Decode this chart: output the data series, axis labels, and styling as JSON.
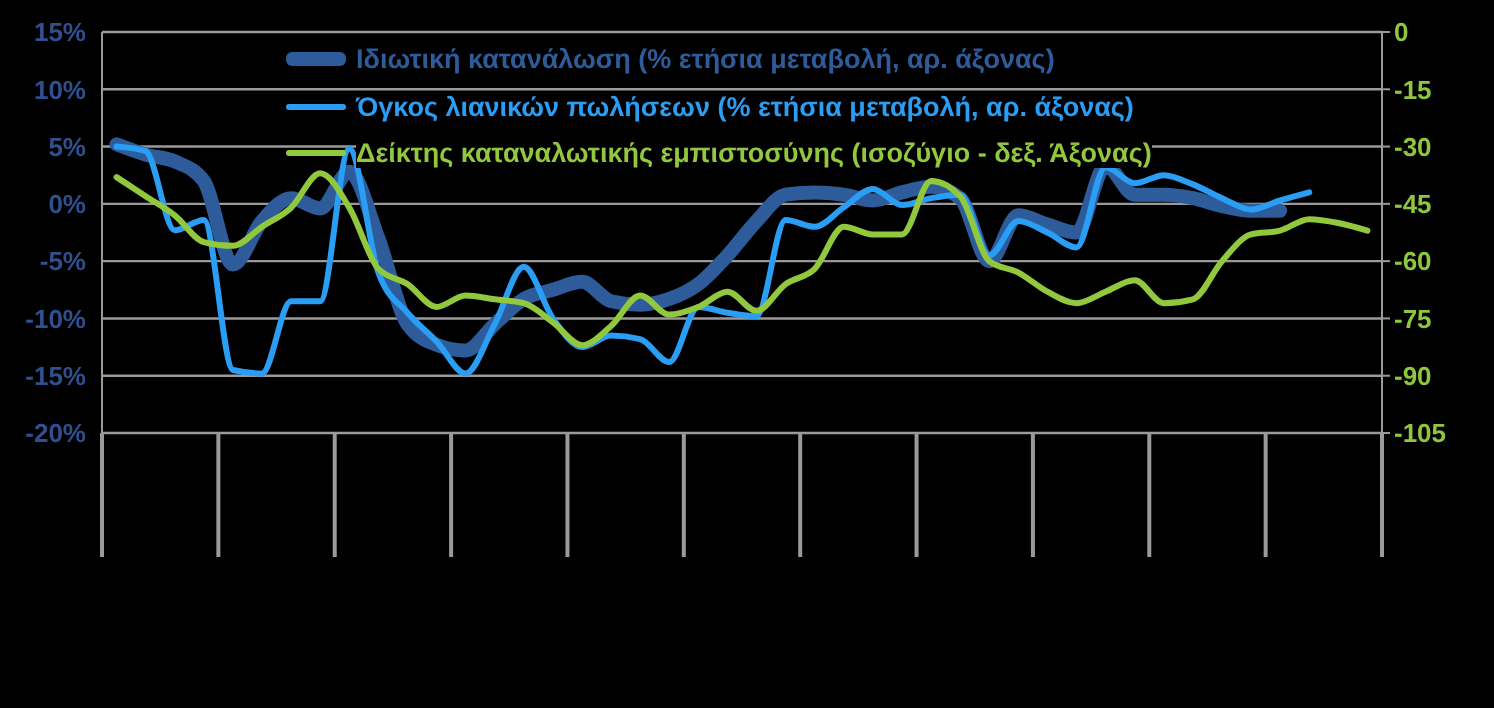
{
  "chart_data": {
    "type": "line",
    "categories": [
      null,
      null,
      null,
      null,
      null,
      null,
      null,
      null,
      null,
      null,
      null,
      null,
      null,
      null,
      null,
      null,
      null,
      null,
      null,
      null,
      null,
      null,
      null,
      null,
      null,
      null,
      null,
      null,
      null,
      null,
      null,
      null,
      null,
      null,
      null,
      null,
      null,
      null,
      null,
      null,
      null,
      null,
      null,
      null
    ],
    "series": [
      {
        "name": "Ιδιωτική κατανάλωση (% ετήσια μεταβολή, αρ. άξονας)",
        "color": "#2e5c9a",
        "values": [
          5.2,
          4.3,
          3.7,
          2.0,
          -5.3,
          -1.5,
          0.5,
          -0.4,
          2.8,
          -3,
          -10.5,
          -12.3,
          -12.8,
          -10.5,
          -8.3,
          -7.5,
          -6.8,
          -8.5,
          -8.8,
          -8.3,
          -7,
          -4.5,
          -1.5,
          0.8,
          1.0,
          0.8,
          0.3,
          1.0,
          1.5,
          0.5,
          -5,
          -1,
          -1.8,
          -2.5,
          3.3,
          0.8,
          0.8,
          0.5,
          -0.2,
          -0.6,
          -0.6,
          null,
          null,
          null
        ]
      },
      {
        "name": "Όγκος λιανικών πωλήσεων (% ετήσια μεταβολή, αρ. άξονας)",
        "color": "#2a9df4",
        "values": [
          5.0,
          4.6,
          -2.3,
          -1.4,
          -14.5,
          -14.8,
          -8.5,
          -8.5,
          4.8,
          -6,
          -9.5,
          -12,
          -14.8,
          -10.5,
          -5.5,
          -10,
          -12.5,
          -11.5,
          -11.8,
          -13.8,
          -9,
          -9.5,
          -9.8,
          -1.4,
          -2,
          -0.3,
          1.3,
          -0.1,
          0.5,
          0.8,
          -4.5,
          -1.5,
          -2.5,
          -3.8,
          3.2,
          1.8,
          2.5,
          1.7,
          0.5,
          -0.5,
          0.3,
          1.0,
          null,
          null
        ]
      },
      {
        "name": "Δείκτης καταναλωτικής εμπιστοσύνης (ισοζύγιο - δεξ. Άξονας)",
        "color": "#92c83e",
        "axis": "y2",
        "values": [
          -38,
          -43,
          -48,
          -55,
          -56,
          -51,
          -46,
          -37,
          -46,
          -62,
          -66,
          -72,
          -69,
          -70,
          -71,
          -76,
          -82,
          -77,
          -69,
          -74,
          -72,
          -68,
          -73,
          -66,
          -62,
          -51,
          -53,
          -53,
          -39,
          -43,
          -60,
          -63,
          -68,
          -71,
          -68,
          -65,
          -71,
          -70,
          -60,
          -53,
          -52,
          -49,
          -50,
          -52
        ]
      }
    ],
    "ylim": [
      -20,
      15
    ],
    "yticks": [
      {
        "value": -20,
        "label": "-20%"
      },
      {
        "value": -15,
        "label": "-15%"
      },
      {
        "value": -10,
        "label": "-10%"
      },
      {
        "value": -5,
        "label": "-5%"
      },
      {
        "value": 0,
        "label": "0%"
      },
      {
        "value": 5,
        "label": "5%"
      },
      {
        "value": 10,
        "label": "10%"
      },
      {
        "value": 15,
        "label": "15%"
      }
    ],
    "y2lim": [
      -105,
      0
    ],
    "y2ticks": [
      -105,
      -90,
      -75,
      -60,
      -45,
      -30,
      -15,
      0
    ],
    "grid": "y",
    "legend": "top",
    "tick_labels": "y",
    "marker": "none",
    "line_style": "solid"
  }
}
